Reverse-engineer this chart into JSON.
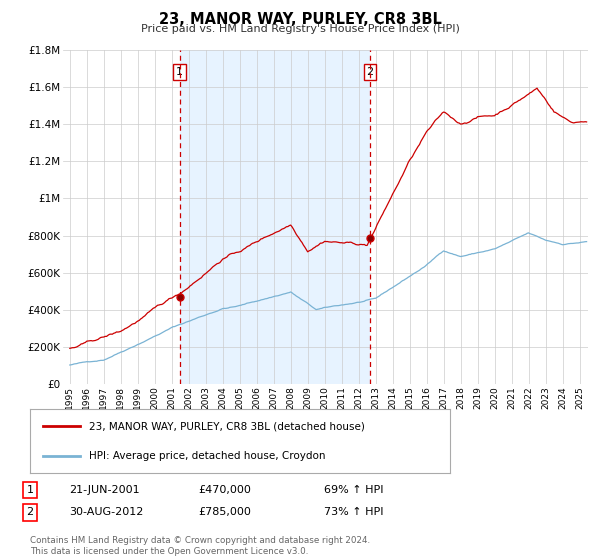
{
  "title": "23, MANOR WAY, PURLEY, CR8 3BL",
  "subtitle": "Price paid vs. HM Land Registry's House Price Index (HPI)",
  "ylim": [
    0,
    1800000
  ],
  "yticks": [
    0,
    200000,
    400000,
    600000,
    800000,
    1000000,
    1200000,
    1400000,
    1600000,
    1800000
  ],
  "ytick_labels": [
    "£0",
    "£200K",
    "£400K",
    "£600K",
    "£800K",
    "£1M",
    "£1.2M",
    "£1.4M",
    "£1.6M",
    "£1.8M"
  ],
  "sale1_date": 2001.47,
  "sale1_price": 470000,
  "sale2_date": 2012.66,
  "sale2_price": 785000,
  "hpi_color": "#7ab3d4",
  "price_color": "#cc0000",
  "vline_color": "#cc0000",
  "shade_color": "#ddeeff",
  "legend_entry1": "23, MANOR WAY, PURLEY, CR8 3BL (detached house)",
  "legend_entry2": "HPI: Average price, detached house, Croydon",
  "table_row1": [
    "1",
    "21-JUN-2001",
    "£470,000",
    "69% ↑ HPI"
  ],
  "table_row2": [
    "2",
    "30-AUG-2012",
    "£785,000",
    "73% ↑ HPI"
  ],
  "footer": "Contains HM Land Registry data © Crown copyright and database right 2024.\nThis data is licensed under the Open Government Licence v3.0.",
  "background_color": "#ffffff",
  "xlim_left": 1994.6,
  "xlim_right": 2025.5
}
